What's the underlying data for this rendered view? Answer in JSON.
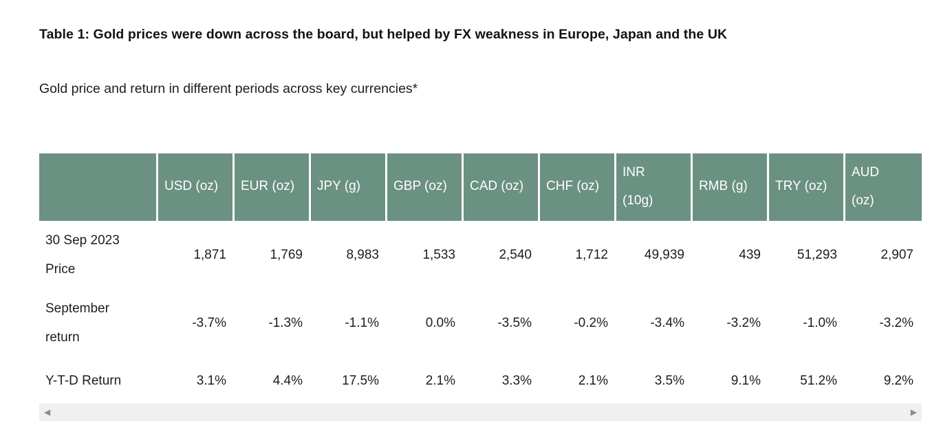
{
  "chart_data": {
    "type": "table",
    "title": "Table 1: Gold prices were down across the board, but helped by FX weakness in Europe, Japan and the UK",
    "subtitle": "Gold price and return in different periods across key currencies*",
    "columns": [
      "USD (oz)",
      "EUR (oz)",
      "JPY (g)",
      "GBP (oz)",
      "CAD (oz)",
      "CHF (oz)",
      "INR (10g)",
      "RMB (g)",
      "TRY (oz)",
      "AUD (oz)"
    ],
    "rows": [
      {
        "label": "30 Sep 2023 Price",
        "values": [
          "1,871",
          "1,769",
          "8,983",
          "1,533",
          "2,540",
          "1,712",
          "49,939",
          "439",
          "51,293",
          "2,907"
        ]
      },
      {
        "label": "September return",
        "values": [
          "-3.7%",
          "-1.3%",
          "-1.1%",
          "0.0%",
          "-3.5%",
          "-0.2%",
          "-3.4%",
          "-3.2%",
          "-1.0%",
          "-3.2%"
        ]
      },
      {
        "label": "Y-T-D Return",
        "values": [
          "3.1%",
          "4.4%",
          "17.5%",
          "2.1%",
          "3.3%",
          "2.1%",
          "3.5%",
          "9.1%",
          "51.2%",
          "9.2%"
        ]
      }
    ],
    "layout": {
      "header_style": "green-fill-white-text",
      "gridlines": "none",
      "scrollable_horizontal": true
    }
  },
  "display": {
    "header_lines": [
      "USD (oz)",
      "EUR (oz)",
      "JPY (g)",
      "GBP (oz)",
      "CAD (oz)",
      "CHF (oz)",
      "INR\n(10g)",
      "RMB (g)",
      "TRY (oz)",
      "AUD\n(oz)"
    ],
    "row_labels": [
      "30 Sep 2023\nPrice",
      "September\nreturn",
      "Y-T-D Return"
    ]
  },
  "scrollbar": {
    "left_arrow": "◀",
    "right_arrow": "▶"
  },
  "colors": {
    "header_bg": "#6a9181",
    "header_text": "#ffffff",
    "body_text": "#1d1d1d",
    "title_text": "#121212",
    "scrollbar_track": "#f0f0f0",
    "scrollbar_arrow": "#8c8c8c"
  }
}
